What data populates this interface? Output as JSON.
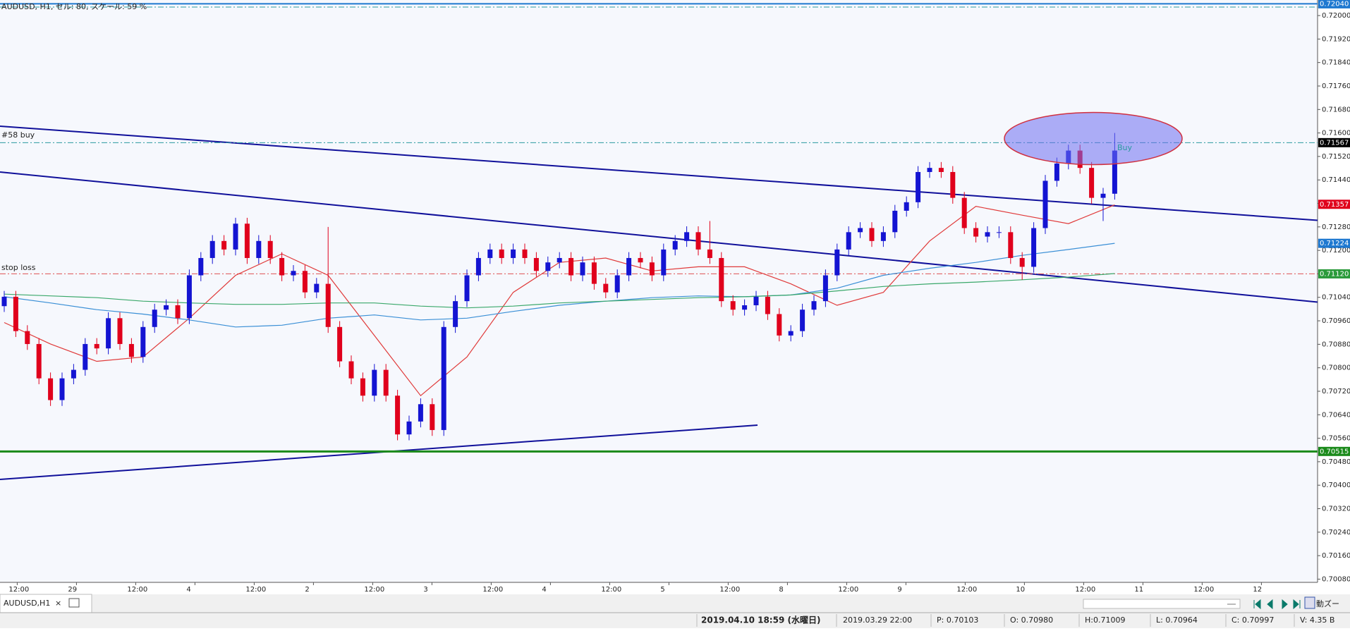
{
  "chart_data": {
    "type": "candlestick",
    "title": "AUDUSD, H1, セル: 80, スケール: 59 %",
    "up_color": "#1414d2",
    "down_color": "#e0001c",
    "ylim": [
      0.70069,
      0.72053
    ],
    "yticks": [
      {
        "value": 0.72,
        "label": "0.72000"
      },
      {
        "value": 0.7192,
        "label": "0.71920"
      },
      {
        "value": 0.7184,
        "label": "0.71840"
      },
      {
        "value": 0.7176,
        "label": "0.71760"
      },
      {
        "value": 0.7168,
        "label": "0.71680"
      },
      {
        "value": 0.716,
        "label": "0.71600"
      },
      {
        "value": 0.7152,
        "label": "0.71520"
      },
      {
        "value": 0.7144,
        "label": "0.71440"
      },
      {
        "value": 0.7136,
        "label": "0.71360"
      },
      {
        "value": 0.7128,
        "label": "0.71280"
      },
      {
        "value": 0.712,
        "label": "0.71200"
      },
      {
        "value": 0.7112,
        "label": "0.71120"
      },
      {
        "value": 0.7104,
        "label": "0.71040"
      },
      {
        "value": 0.7096,
        "label": "0.70960"
      },
      {
        "value": 0.7088,
        "label": "0.70880"
      },
      {
        "value": 0.708,
        "label": "0.70800"
      },
      {
        "value": 0.7072,
        "label": "0.70720"
      },
      {
        "value": 0.7064,
        "label": "0.70640"
      },
      {
        "value": 0.7056,
        "label": "0.70560"
      },
      {
        "value": 0.7048,
        "label": "0.70480"
      },
      {
        "value": 0.704,
        "label": "0.70400"
      },
      {
        "value": 0.7032,
        "label": "0.70320"
      },
      {
        "value": 0.7024,
        "label": "0.70240"
      },
      {
        "value": 0.7016,
        "label": "0.70160"
      },
      {
        "value": 0.7008,
        "label": "0.70080"
      }
    ],
    "x_labels": [
      "12:00",
      "29",
      "12:00",
      "4",
      "12:00",
      "2",
      "12:00",
      "3",
      "12:00",
      "4",
      "12:00",
      "5",
      "12:00",
      "8",
      "12:00",
      "9",
      "12:00",
      "10",
      "12:00",
      "11",
      "12:00",
      "12"
    ],
    "ohlc": [
      [
        0.7101,
        0.71062,
        0.7099,
        0.71042
      ],
      [
        0.71042,
        0.71062,
        0.70905,
        0.70925
      ],
      [
        0.70925,
        0.70945,
        0.70861,
        0.70881
      ],
      [
        0.70881,
        0.70901,
        0.70744,
        0.70764
      ],
      [
        0.70764,
        0.70784,
        0.7067,
        0.7069
      ],
      [
        0.7069,
        0.70784,
        0.7067,
        0.70764
      ],
      [
        0.70764,
        0.70813,
        0.70744,
        0.70793
      ],
      [
        0.70793,
        0.70901,
        0.70773,
        0.70881
      ],
      [
        0.70881,
        0.70901,
        0.70846,
        0.70866
      ],
      [
        0.70866,
        0.70989,
        0.70846,
        0.70969
      ],
      [
        0.70969,
        0.70989,
        0.70861,
        0.70881
      ],
      [
        0.70881,
        0.70901,
        0.70817,
        0.70837
      ],
      [
        0.70837,
        0.70959,
        0.70817,
        0.70939
      ],
      [
        0.70939,
        0.71018,
        0.70919,
        0.70998
      ],
      [
        0.70998,
        0.71033,
        0.70978,
        0.71013
      ],
      [
        0.71013,
        0.71033,
        0.70949,
        0.70969
      ],
      [
        0.70969,
        0.71135,
        0.70949,
        0.71115
      ],
      [
        0.71115,
        0.71194,
        0.71095,
        0.71174
      ],
      [
        0.71174,
        0.71252,
        0.71154,
        0.71232
      ],
      [
        0.71232,
        0.71252,
        0.71183,
        0.71203
      ],
      [
        0.71203,
        0.71311,
        0.71183,
        0.71291
      ],
      [
        0.71291,
        0.71311,
        0.71154,
        0.71174
      ],
      [
        0.71174,
        0.71252,
        0.71154,
        0.71232
      ],
      [
        0.71232,
        0.71252,
        0.71154,
        0.71174
      ],
      [
        0.71174,
        0.71194,
        0.71095,
        0.71115
      ],
      [
        0.71115,
        0.7115,
        0.71095,
        0.7113
      ],
      [
        0.7113,
        0.7115,
        0.71037,
        0.71057
      ],
      [
        0.71057,
        0.71106,
        0.71037,
        0.71086
      ],
      [
        0.71086,
        0.7128,
        0.70919,
        0.70939
      ],
      [
        0.70939,
        0.70959,
        0.70802,
        0.70822
      ],
      [
        0.70822,
        0.70842,
        0.70744,
        0.70764
      ],
      [
        0.70764,
        0.70784,
        0.70685,
        0.70705
      ],
      [
        0.70705,
        0.70813,
        0.70685,
        0.70793
      ],
      [
        0.70793,
        0.70813,
        0.70685,
        0.70705
      ],
      [
        0.70705,
        0.70725,
        0.70553,
        0.70573
      ],
      [
        0.70573,
        0.70637,
        0.70553,
        0.70617
      ],
      [
        0.70617,
        0.70696,
        0.70597,
        0.70676
      ],
      [
        0.70676,
        0.70696,
        0.70568,
        0.70588
      ],
      [
        0.70588,
        0.70959,
        0.70568,
        0.70939
      ],
      [
        0.70939,
        0.71047,
        0.70919,
        0.71027
      ],
      [
        0.71027,
        0.71135,
        0.71007,
        0.71115
      ],
      [
        0.71115,
        0.71194,
        0.71095,
        0.71174
      ],
      [
        0.71174,
        0.71223,
        0.71154,
        0.71203
      ],
      [
        0.71203,
        0.71223,
        0.71154,
        0.71174
      ],
      [
        0.71174,
        0.71223,
        0.71154,
        0.71203
      ],
      [
        0.71203,
        0.71223,
        0.71154,
        0.71174
      ],
      [
        0.71174,
        0.71194,
        0.7111,
        0.7113
      ],
      [
        0.7113,
        0.71179,
        0.7111,
        0.71159
      ],
      [
        0.71159,
        0.71194,
        0.71139,
        0.71174
      ],
      [
        0.71174,
        0.71194,
        0.71095,
        0.71115
      ],
      [
        0.71115,
        0.71179,
        0.71095,
        0.71159
      ],
      [
        0.71159,
        0.71179,
        0.71066,
        0.71086
      ],
      [
        0.71086,
        0.71106,
        0.71037,
        0.71057
      ],
      [
        0.71057,
        0.71135,
        0.71037,
        0.71115
      ],
      [
        0.71115,
        0.71194,
        0.71095,
        0.71174
      ],
      [
        0.71174,
        0.71194,
        0.71139,
        0.71159
      ],
      [
        0.71159,
        0.71179,
        0.71095,
        0.71115
      ],
      [
        0.71115,
        0.71223,
        0.71095,
        0.71203
      ],
      [
        0.71203,
        0.71252,
        0.71183,
        0.71232
      ],
      [
        0.71232,
        0.71282,
        0.71212,
        0.71262
      ],
      [
        0.71262,
        0.71282,
        0.71183,
        0.71203
      ],
      [
        0.71203,
        0.713,
        0.71154,
        0.71174
      ],
      [
        0.71174,
        0.71194,
        0.71007,
        0.71027
      ],
      [
        0.71027,
        0.71047,
        0.70978,
        0.70998
      ],
      [
        0.70998,
        0.71033,
        0.70978,
        0.71013
      ],
      [
        0.71013,
        0.71062,
        0.70993,
        0.71042
      ],
      [
        0.71042,
        0.71062,
        0.70963,
        0.70983
      ],
      [
        0.70983,
        0.71003,
        0.7089,
        0.7091
      ],
      [
        0.7091,
        0.70945,
        0.7089,
        0.70925
      ],
      [
        0.70925,
        0.71018,
        0.70905,
        0.70998
      ],
      [
        0.70998,
        0.71047,
        0.70978,
        0.71027
      ],
      [
        0.71027,
        0.71135,
        0.71007,
        0.71115
      ],
      [
        0.71115,
        0.71223,
        0.71095,
        0.71203
      ],
      [
        0.71203,
        0.71282,
        0.71183,
        0.71262
      ],
      [
        0.71262,
        0.71296,
        0.71242,
        0.71276
      ],
      [
        0.71276,
        0.71296,
        0.71212,
        0.71232
      ],
      [
        0.71232,
        0.71282,
        0.71212,
        0.71262
      ],
      [
        0.71262,
        0.71355,
        0.71242,
        0.71335
      ],
      [
        0.71335,
        0.71384,
        0.71315,
        0.71364
      ],
      [
        0.71364,
        0.71487,
        0.71344,
        0.71467
      ],
      [
        0.71467,
        0.71501,
        0.71447,
        0.71481
      ],
      [
        0.71481,
        0.71501,
        0.71447,
        0.71467
      ],
      [
        0.71467,
        0.71487,
        0.71359,
        0.71379
      ],
      [
        0.71379,
        0.71399,
        0.71256,
        0.71276
      ],
      [
        0.71276,
        0.71296,
        0.71227,
        0.71247
      ],
      [
        0.71247,
        0.71282,
        0.71227,
        0.71262
      ],
      [
        0.71262,
        0.71282,
        0.71242,
        0.71262
      ],
      [
        0.71262,
        0.71282,
        0.71154,
        0.71174
      ],
      [
        0.71174,
        0.71194,
        0.711,
        0.71144
      ],
      [
        0.71144,
        0.71296,
        0.71124,
        0.71276
      ],
      [
        0.71276,
        0.71457,
        0.71256,
        0.71437
      ],
      [
        0.71437,
        0.71516,
        0.71417,
        0.71496
      ],
      [
        0.71496,
        0.7156,
        0.71476,
        0.7154
      ],
      [
        0.7154,
        0.7156,
        0.71461,
        0.71481
      ],
      [
        0.71481,
        0.71501,
        0.71359,
        0.71379
      ],
      [
        0.71379,
        0.71413,
        0.713,
        0.71393
      ],
      [
        0.71393,
        0.716,
        0.71373,
        0.7154
      ]
    ],
    "indicators": [
      {
        "color": "#e03a3a",
        "x": [
          0,
          4,
          8,
          12,
          16,
          20,
          24,
          28,
          32,
          36,
          40,
          44,
          48,
          52,
          56,
          60,
          64,
          68,
          72,
          76,
          80,
          84,
          88,
          92,
          96
        ],
        "values": [
          0.70954,
          0.70881,
          0.70822,
          0.70837,
          0.70969,
          0.71115,
          0.71188,
          0.71115,
          0.7091,
          0.70705,
          0.70837,
          0.71057,
          0.71159,
          0.71174,
          0.7113,
          0.71144,
          0.71144,
          0.71086,
          0.71013,
          0.71057,
          0.71232,
          0.7135,
          0.7132,
          0.71291,
          0.71355
        ]
      },
      {
        "color": "#3a8fd6",
        "x": [
          0,
          4,
          8,
          12,
          16,
          20,
          24,
          28,
          32,
          36,
          40,
          44,
          48,
          52,
          56,
          60,
          64,
          68,
          72,
          76,
          80,
          84,
          88,
          92,
          96
        ],
        "values": [
          0.71042,
          0.71021,
          0.70998,
          0.70983,
          0.70963,
          0.70939,
          0.70945,
          0.70969,
          0.7098,
          0.70963,
          0.70969,
          0.70992,
          0.71013,
          0.71027,
          0.71039,
          0.71045,
          0.71042,
          0.71048,
          0.71071,
          0.71115,
          0.71139,
          0.71159,
          0.71183,
          0.71203,
          0.71224
        ]
      },
      {
        "color": "#3aa86a",
        "x": [
          0,
          4,
          8,
          12,
          16,
          20,
          24,
          28,
          32,
          36,
          40,
          44,
          48,
          52,
          56,
          60,
          64,
          68,
          72,
          76,
          80,
          84,
          88,
          92,
          96
        ],
        "values": [
          0.71051,
          0.71045,
          0.71039,
          0.71027,
          0.71021,
          0.71016,
          0.71016,
          0.71021,
          0.71021,
          0.7101,
          0.71004,
          0.7101,
          0.71021,
          0.71027,
          0.71033,
          0.71039,
          0.71042,
          0.71048,
          0.71062,
          0.71077,
          0.71086,
          0.71092,
          0.711,
          0.71109,
          0.71121
        ]
      }
    ],
    "levels": [
      {
        "value": 0.7204,
        "label": "0.72040",
        "color": "#1e78d0",
        "line_color": "#1e78d0",
        "line_style": "solid"
      },
      {
        "value": 0.71567,
        "label": "0.71567",
        "color": "#000000",
        "line_color": "#2a9aa0",
        "line_style": "dashdot"
      },
      {
        "value": 0.71357,
        "label": "0.71357",
        "color": "#e0001c"
      },
      {
        "value": 0.71224,
        "label": "0.71224",
        "color": "#1e78d0"
      },
      {
        "value": 0.7112,
        "label": "0.71120",
        "color": "#2a9a3a",
        "line_color": "#e05050",
        "line_style": "dashdot"
      },
      {
        "value": 0.70515,
        "label": "0.70515",
        "color": "#1a8a1a",
        "line_color": "#1a8a1a",
        "line_style": "thick"
      }
    ],
    "annotations": {
      "buy_order": "#58 buy",
      "stop_loss": "stop loss",
      "signal": "Buy"
    }
  },
  "tab": {
    "label": "AUDUSD,H1",
    "close": "×",
    "auto_zoom": "動ズー"
  },
  "status_bar": {
    "time": "2019.04.10 18:59 (水曜日)",
    "bar_time": "2019.03.29 22:00",
    "p": "P: 0.70103",
    "o": "O: 0.70980",
    "h": "H:0.71009",
    "l": "L: 0.70964",
    "c": "C: 0.70997",
    "v": "V: 4.35 B"
  }
}
